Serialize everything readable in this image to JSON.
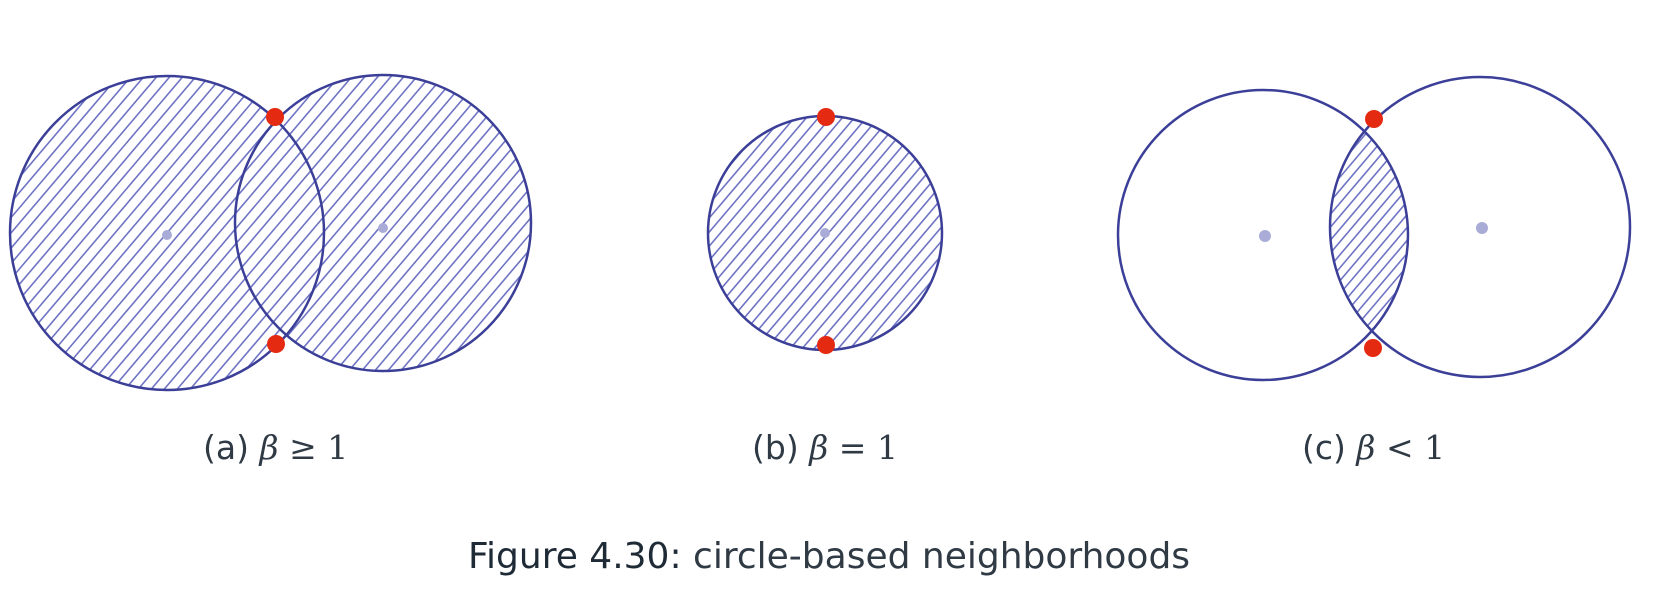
{
  "panels": [
    {
      "id": "a",
      "label": "(a)",
      "symbol": "β",
      "relation": "≥",
      "value": "1",
      "shaded": "union"
    },
    {
      "id": "b",
      "label": "(b)",
      "symbol": "β",
      "relation": "=",
      "value": "1",
      "shaded": "single"
    },
    {
      "id": "c",
      "label": "(c)",
      "symbol": "β",
      "relation": "<",
      "value": "1",
      "shaded": "intersection"
    }
  ],
  "caption": {
    "label": "Figure 4.30:",
    "text": "circle-based neighborhoods"
  },
  "colors": {
    "stroke": "#3b3f98",
    "hatch": "#6f74c4",
    "point": "#e52a12",
    "center": "#a9acd6"
  }
}
